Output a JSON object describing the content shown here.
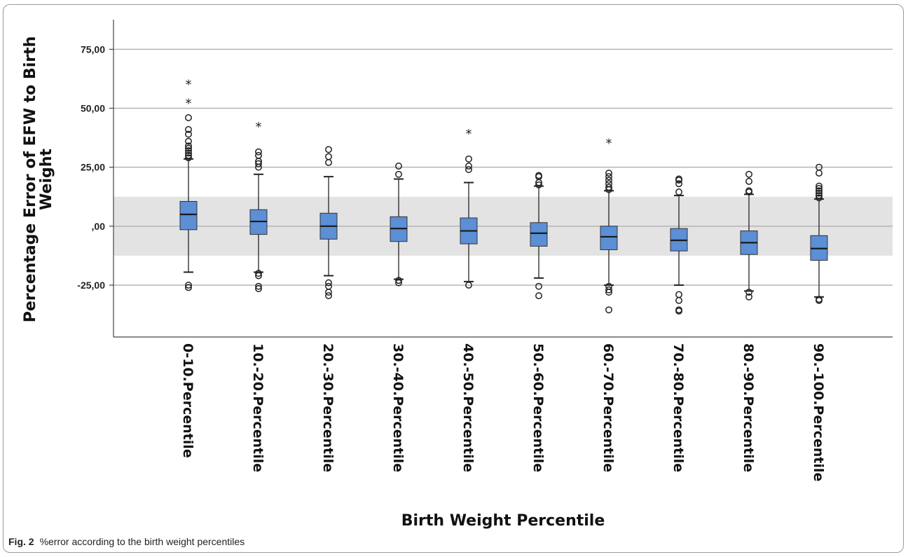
{
  "caption": {
    "fig_label": "Fig. 2",
    "text": "%error according to the birth weight percentiles"
  },
  "chart_data": {
    "type": "box",
    "xlabel": "Birth Weight Percentile",
    "ylabel": "Percentage Error of EFW to Birth Weight",
    "ylim": [
      -47,
      87
    ],
    "yticks": [
      -25,
      0,
      25,
      50,
      75
    ],
    "ytick_labels": [
      "-25,00",
      ",00",
      "25,00",
      "50,00",
      "75,00"
    ],
    "grid": "horizontal",
    "reference_band": [
      -12.5,
      12.5
    ],
    "colors": {
      "box": "#5b8fd6",
      "band": "#e3e3e3"
    },
    "categories": [
      "0-10.Percentile",
      "10.-20.Percentile",
      "20.-30.Percentile",
      "30.-40.Percentile",
      "40.-50.Percentile",
      "50.-60.Percentile",
      "60.-70.Percentile",
      "70.-80.Percentile",
      "80.-90.Percentile",
      "90.-100.Percentile"
    ],
    "boxes": [
      {
        "q1": -1.5,
        "median": 5,
        "q3": 10.5,
        "whisker_low": -19.5,
        "whisker_high": 28.5,
        "outliers": [
          -25,
          -26,
          29,
          30,
          31,
          32,
          33,
          34,
          36,
          39,
          41,
          46
        ],
        "extremes": [
          53,
          61
        ]
      },
      {
        "q1": -3.5,
        "median": 2,
        "q3": 7,
        "whisker_low": -19.5,
        "whisker_high": 22,
        "outliers": [
          -20,
          -21,
          -25.5,
          -26.5,
          25,
          26.5,
          27.5,
          30,
          31.5
        ],
        "extremes": [
          43
        ]
      },
      {
        "q1": -5.5,
        "median": 0,
        "q3": 5.5,
        "whisker_low": -21,
        "whisker_high": 21,
        "outliers": [
          -24,
          -25.5,
          -28,
          -29.5,
          27,
          29.5,
          32.5
        ],
        "extremes": []
      },
      {
        "q1": -6.5,
        "median": -1,
        "q3": 4,
        "whisker_low": -22.5,
        "whisker_high": 20,
        "outliers": [
          -23,
          -24,
          22,
          25.5
        ],
        "extremes": []
      },
      {
        "q1": -7.5,
        "median": -2,
        "q3": 3.5,
        "whisker_low": -23.5,
        "whisker_high": 18.5,
        "outliers": [
          -25,
          24,
          25.5,
          28.5
        ],
        "extremes": [
          40
        ]
      },
      {
        "q1": -8.5,
        "median": -3,
        "q3": 1.5,
        "whisker_low": -22,
        "whisker_high": 17,
        "outliers": [
          -25.5,
          -29.5,
          17.5,
          18.5,
          21,
          21.5
        ],
        "extremes": []
      },
      {
        "q1": -10,
        "median": -4.5,
        "q3": 0,
        "whisker_low": -25,
        "whisker_high": 15,
        "outliers": [
          -25.5,
          -27,
          -28,
          -35.5,
          15.5,
          16.5,
          18,
          19.5,
          21,
          22.5
        ],
        "extremes": [
          36
        ]
      },
      {
        "q1": -10.5,
        "median": -6,
        "q3": -1,
        "whisker_low": -25,
        "whisker_high": 13,
        "outliers": [
          -29,
          -31.5,
          -35.5,
          -36,
          14.5,
          18,
          19.5,
          20
        ],
        "extremes": []
      },
      {
        "q1": -12,
        "median": -7,
        "q3": -2,
        "whisker_low": -27.5,
        "whisker_high": 13.5,
        "outliers": [
          -28,
          -30,
          14.5,
          15,
          19,
          22
        ],
        "extremes": []
      },
      {
        "q1": -14.5,
        "median": -9.5,
        "q3": -4,
        "whisker_low": -30,
        "whisker_high": 11.5,
        "outliers": [
          -31,
          -31.5,
          12,
          13,
          14,
          15,
          16,
          17,
          22.5,
          25
        ],
        "extremes": []
      }
    ]
  }
}
